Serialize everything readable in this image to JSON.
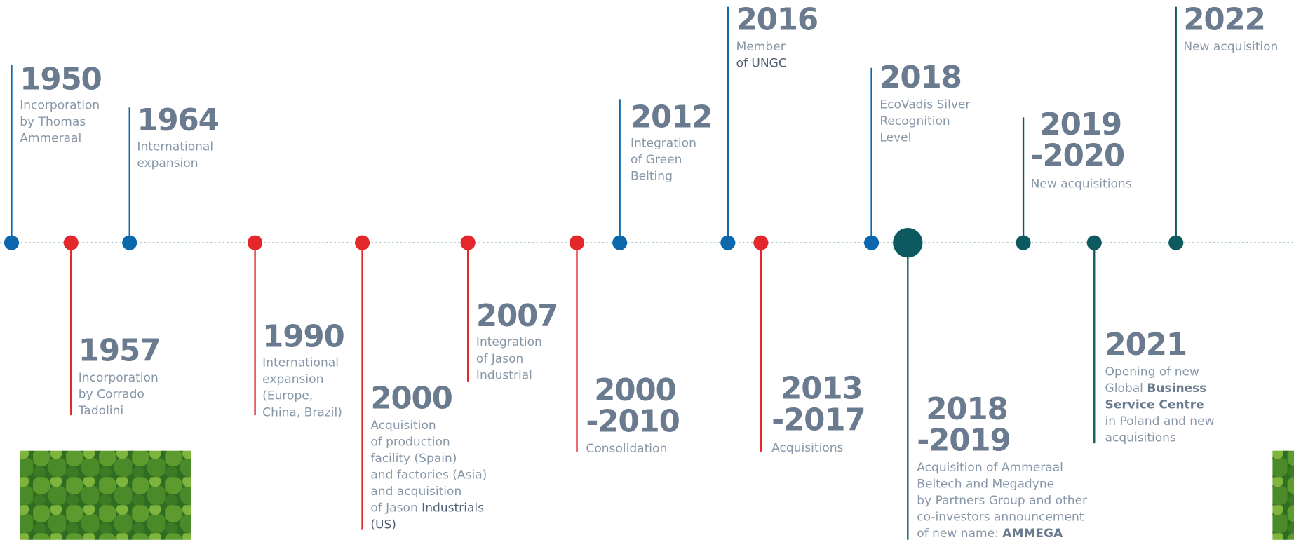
{
  "events": [
    {
      "year_lines": [
        "1950"
      ],
      "color": "#0b68ad",
      "lines": [
        [
          {
            "text": "Incorporation"
          }
        ],
        [
          {
            "text": "by Thomas"
          }
        ],
        [
          {
            "text": "Ammeraal"
          }
        ]
      ]
    },
    {
      "year_lines": [
        "1957"
      ],
      "color": "#e3272b",
      "lines": [
        [
          {
            "text": "Incorporation"
          }
        ],
        [
          {
            "text": "by Corrado"
          }
        ],
        [
          {
            "text": "Tadolini"
          }
        ]
      ]
    },
    {
      "year_lines": [
        "1964"
      ],
      "color": "#0b68ad",
      "lines": [
        [
          {
            "text": "International"
          }
        ],
        [
          {
            "text": "expansion"
          }
        ]
      ]
    },
    {
      "year_lines": [
        "1990"
      ],
      "color": "#e3272b",
      "lines": [
        [
          {
            "text": "International"
          }
        ],
        [
          {
            "text": "expansion"
          }
        ],
        [
          {
            "text": "(Europe,"
          }
        ],
        [
          {
            "text": "China, Brazil)"
          }
        ]
      ]
    },
    {
      "year_lines": [
        "2000"
      ],
      "color": "#e3272b",
      "lines": [
        [
          {
            "text": "Acquisition"
          }
        ],
        [
          {
            "text": "of production"
          }
        ],
        [
          {
            "text": "facility (Spain)"
          }
        ],
        [
          {
            "text": "and factories (Asia)"
          }
        ],
        [
          {
            "text": "and acquisition"
          }
        ],
        [
          {
            "text": "of Jason "
          },
          {
            "text": "Industrials",
            "style": "dark"
          }
        ],
        [
          {
            "text": "(US)",
            "style": "dark"
          }
        ]
      ]
    },
    {
      "year_lines": [
        "2007"
      ],
      "color": "#e3272b",
      "lines": [
        [
          {
            "text": "Integration"
          }
        ],
        [
          {
            "text": "of Jason"
          }
        ],
        [
          {
            "text": "Industrial"
          }
        ]
      ]
    },
    {
      "year_lines": [
        "2000",
        "-2010"
      ],
      "color": "#e3272b",
      "lines": [
        [
          {
            "text": "Consolidation"
          }
        ]
      ]
    },
    {
      "year_lines": [
        "2012"
      ],
      "color": "#0b68ad",
      "lines": [
        [
          {
            "text": "Integration"
          }
        ],
        [
          {
            "text": "of Green"
          }
        ],
        [
          {
            "text": "Belting"
          }
        ]
      ]
    },
    {
      "year_lines": [
        "2016"
      ],
      "color": "#0b68ad",
      "lines": [
        [
          {
            "text": "Member"
          }
        ],
        [
          {
            "text": "of UNGC",
            "style": "dark"
          }
        ]
      ]
    },
    {
      "year_lines": [
        "2013",
        "-2017"
      ],
      "color": "#e3272b",
      "lines": [
        [
          {
            "text": "Acquisitions"
          }
        ]
      ]
    },
    {
      "year_lines": [
        "2018"
      ],
      "color": "#0b68ad",
      "lines": [
        [
          {
            "text": "EcoVadis Silver"
          }
        ],
        [
          {
            "text": "Recognition"
          }
        ],
        [
          {
            "text": "Level"
          }
        ]
      ]
    },
    {
      "year_lines": [
        "2018",
        "-2019"
      ],
      "color": "#0c5a5f",
      "lines": [
        [
          {
            "text": "Acquisition of Ammeraal"
          }
        ],
        [
          {
            "text": "Beltech and Megadyne"
          }
        ],
        [
          {
            "text": "by Partners Group and other"
          }
        ],
        [
          {
            "text": "co-investors announcement"
          }
        ],
        [
          {
            "text": "of new name: "
          },
          {
            "text": "AMMEGA",
            "style": "bold"
          }
        ]
      ]
    },
    {
      "year_lines": [
        "2019",
        "-2020"
      ],
      "color": "#0c5a5f",
      "lines": [
        [
          {
            "text": "New acquisitions"
          }
        ]
      ]
    },
    {
      "year_lines": [
        "2021"
      ],
      "color": "#0c5a5f",
      "lines": [
        [
          {
            "text": "Opening of new"
          }
        ],
        [
          {
            "text": "Global "
          },
          {
            "text": "Business",
            "style": "bold"
          }
        ],
        [
          {
            "text": "Service Centre",
            "style": "bold"
          }
        ],
        [
          {
            "text": "in Poland and new"
          }
        ],
        [
          {
            "text": "acquisitions"
          }
        ]
      ]
    },
    {
      "year_lines": [
        "2022"
      ],
      "color": "#0c5a5f",
      "lines": [
        [
          {
            "text": "New acquisition"
          }
        ]
      ]
    }
  ]
}
